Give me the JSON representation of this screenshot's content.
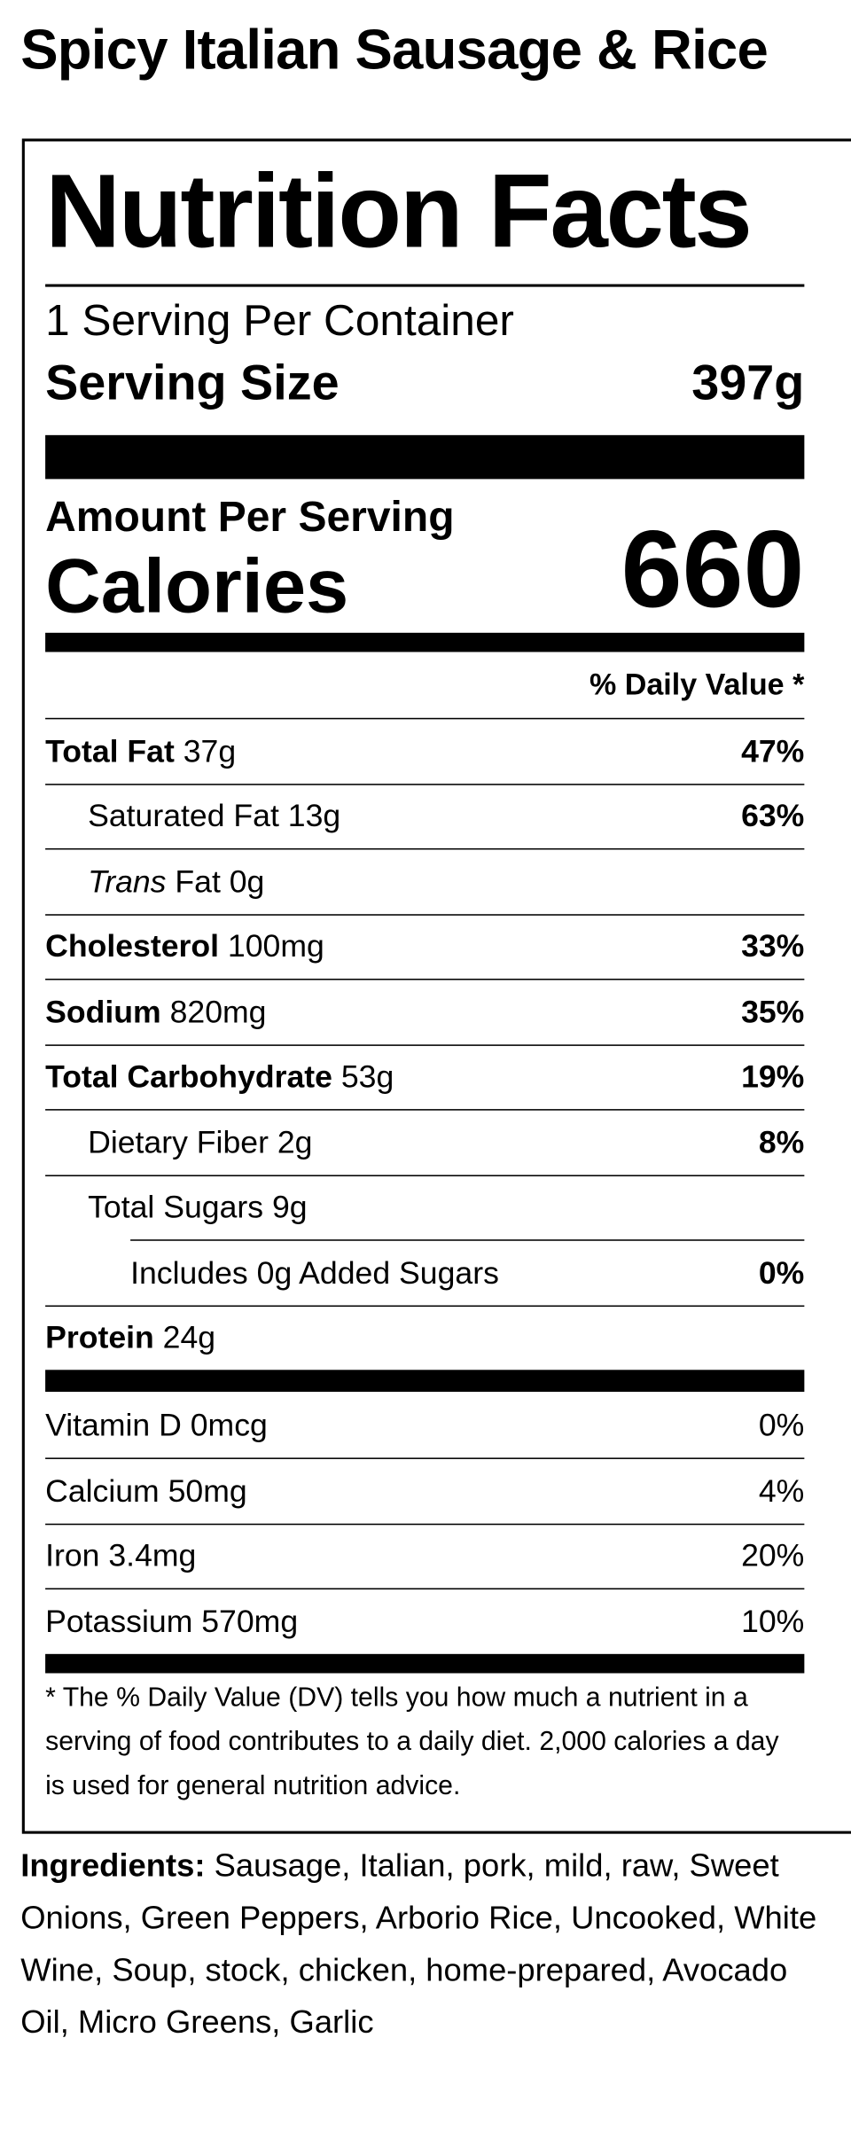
{
  "title": "Spicy Italian Sausage & Rice",
  "label": {
    "heading": "Nutrition Facts",
    "servings_per_container": "1 Serving Per Container",
    "serving_size": {
      "label": "Serving Size",
      "value": "397g"
    },
    "amount_per_serving": "Amount Per Serving",
    "calories": {
      "label": "Calories",
      "value": 660
    },
    "daily_value_header": "% Daily Value *",
    "nutrients": [
      {
        "name": "Total Fat",
        "amount": "37g",
        "dv": "47%",
        "indent": 0,
        "bold": true
      },
      {
        "name": "Saturated Fat",
        "amount": "13g",
        "dv": "63%",
        "indent": 1,
        "bold": false
      },
      {
        "name_italic": "Trans",
        "name": "Fat",
        "amount": "0g",
        "indent": 1,
        "bold": false
      },
      {
        "name": "Cholesterol",
        "amount": "100mg",
        "dv": "33%",
        "indent": 0,
        "bold": true
      },
      {
        "name": "Sodium",
        "amount": "820mg",
        "dv": "35%",
        "indent": 0,
        "bold": true
      },
      {
        "name": "Total Carbohydrate",
        "amount": "53g",
        "dv": "19%",
        "indent": 0,
        "bold": true
      },
      {
        "name": "Dietary Fiber",
        "amount": "2g",
        "dv": "8%",
        "indent": 1,
        "bold": false
      },
      {
        "name": "Total Sugars",
        "amount": "9g",
        "indent": 1,
        "bold": false
      },
      {
        "name": "Includes 0g Added Sugars",
        "dv": "0%",
        "indent": 2,
        "bold": false
      },
      {
        "name": "Protein",
        "amount": "24g",
        "indent": 0,
        "bold": true
      }
    ],
    "vitamins": [
      {
        "name": "Vitamin D",
        "amount": "0mcg",
        "dv": "0%"
      },
      {
        "name": "Calcium",
        "amount": "50mg",
        "dv": "4%"
      },
      {
        "name": "Iron",
        "amount": "3.4mg",
        "dv": "20%"
      },
      {
        "name": "Potassium",
        "amount": "570mg",
        "dv": "10%"
      }
    ],
    "footnote": "* The % Daily Value (DV) tells you how much a nutrient in a serving of food contributes to a daily diet. 2,000 calories a day is used for general nutrition advice."
  },
  "ingredients": {
    "label": "Ingredients:",
    "text": "Sausage, Italian, pork, mild, raw, Sweet Onions, Green Peppers, Arborio Rice, Uncooked, White Wine, Soup, stock, chicken, home-prepared, Avocado Oil, Micro Greens, Garlic"
  }
}
